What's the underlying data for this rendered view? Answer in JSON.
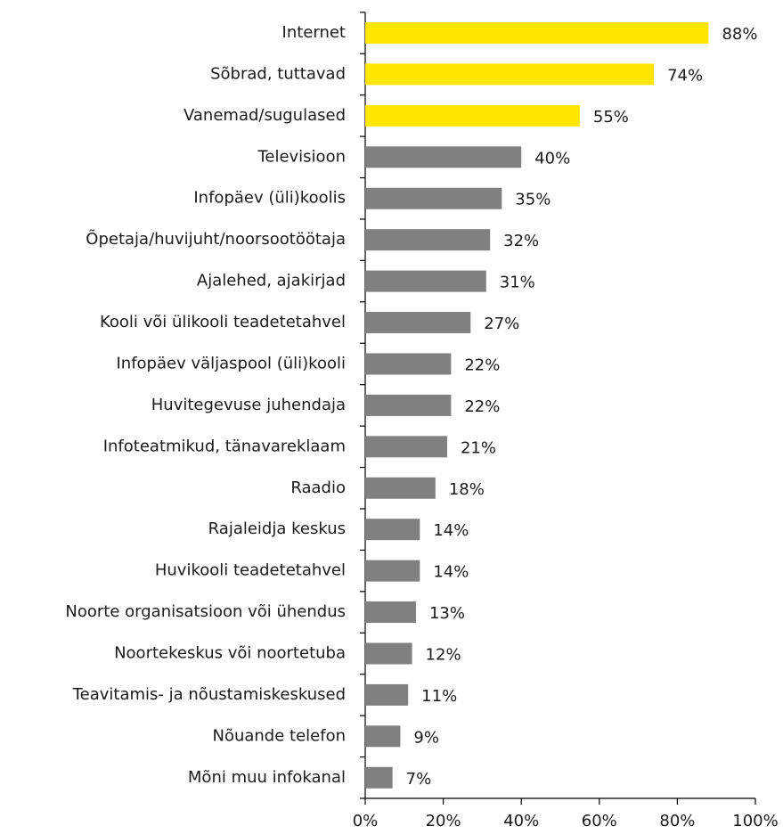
{
  "chart_data": {
    "type": "hbar",
    "categories": [
      "Internet",
      "Sõbrad, tuttavad",
      "Vanemad/sugulased",
      "Televisioon",
      "Infopäev (üli)koolis",
      "Õpetaja/huvijuht/noorsootöötaja",
      "Ajalehed, ajakirjad",
      "Kooli või ülikooli teadetetahvel",
      "Infopäev väljaspool (üli)kooli",
      "Huvitegevuse juhendaja",
      "Infoteatmikud, tänavareklaam",
      "Raadio",
      "Rajaleidja keskus",
      "Huvikooli teadetetahvel",
      "Noorte organisatsioon või ühendus",
      "Noortekeskus või noortetuba",
      "Teavitamis- ja nõustamiskeskused",
      "Nõuande telefon",
      "Mõni muu infokanal"
    ],
    "values": [
      88,
      74,
      55,
      40,
      35,
      32,
      31,
      27,
      22,
      22,
      21,
      18,
      14,
      14,
      13,
      12,
      11,
      9,
      7
    ],
    "value_labels": [
      "88%",
      "74%",
      "55%",
      "40%",
      "35%",
      "32%",
      "31%",
      "27%",
      "22%",
      "22%",
      "21%",
      "18%",
      "14%",
      "14%",
      "13%",
      "12%",
      "11%",
      "9%",
      "7%"
    ],
    "colors": [
      "#ffe600",
      "#ffe600",
      "#ffe600",
      "#808080",
      "#808080",
      "#808080",
      "#808080",
      "#808080",
      "#808080",
      "#808080",
      "#808080",
      "#808080",
      "#808080",
      "#808080",
      "#808080",
      "#808080",
      "#808080",
      "#808080",
      "#808080"
    ],
    "xlim": [
      0,
      100
    ],
    "xticks": [
      {
        "value": 0,
        "label": "0%"
      },
      {
        "value": 20,
        "label": "20%"
      },
      {
        "value": 40,
        "label": "40%"
      },
      {
        "value": 60,
        "label": "60%"
      },
      {
        "value": 80,
        "label": "80%"
      },
      {
        "value": 100,
        "label": "100%"
      }
    ]
  }
}
